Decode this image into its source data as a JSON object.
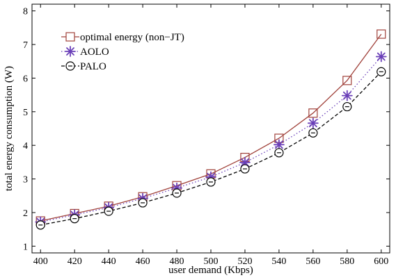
{
  "chart_data": {
    "type": "line",
    "title": "",
    "xlabel": "user demand (Kbps)",
    "ylabel": "total energy consumption (W)",
    "xlim": [
      395,
      605
    ],
    "ylim": [
      0.8,
      8.2
    ],
    "x": [
      400,
      420,
      440,
      460,
      480,
      500,
      520,
      540,
      560,
      580,
      600
    ],
    "xticks": [
      "400",
      "420",
      "440",
      "460",
      "480",
      "500",
      "520",
      "540",
      "560",
      "580",
      "600"
    ],
    "yticks": [
      "1",
      "2",
      "3",
      "4",
      "5",
      "6",
      "7",
      "8"
    ],
    "grid": false,
    "legend_position": "top-left",
    "series": [
      {
        "name": "optimal energy (non−JT)",
        "marker": "square",
        "line_style": "solid",
        "color": "#a0413a",
        "values": [
          1.75,
          1.97,
          2.19,
          2.47,
          2.8,
          3.15,
          3.64,
          4.21,
          4.96,
          5.93,
          7.31
        ]
      },
      {
        "name": "AOLO",
        "marker": "asterisk",
        "line_style": "dotted",
        "color": "#6a3fb8",
        "values": [
          1.72,
          1.93,
          2.15,
          2.42,
          2.73,
          3.06,
          3.49,
          4.02,
          4.66,
          5.48,
          6.64
        ]
      },
      {
        "name": "PALO",
        "marker": "circle",
        "line_style": "dashed",
        "color": "#000000",
        "values": [
          1.63,
          1.82,
          2.04,
          2.29,
          2.58,
          2.91,
          3.3,
          3.78,
          4.37,
          5.15,
          6.19
        ]
      }
    ]
  }
}
